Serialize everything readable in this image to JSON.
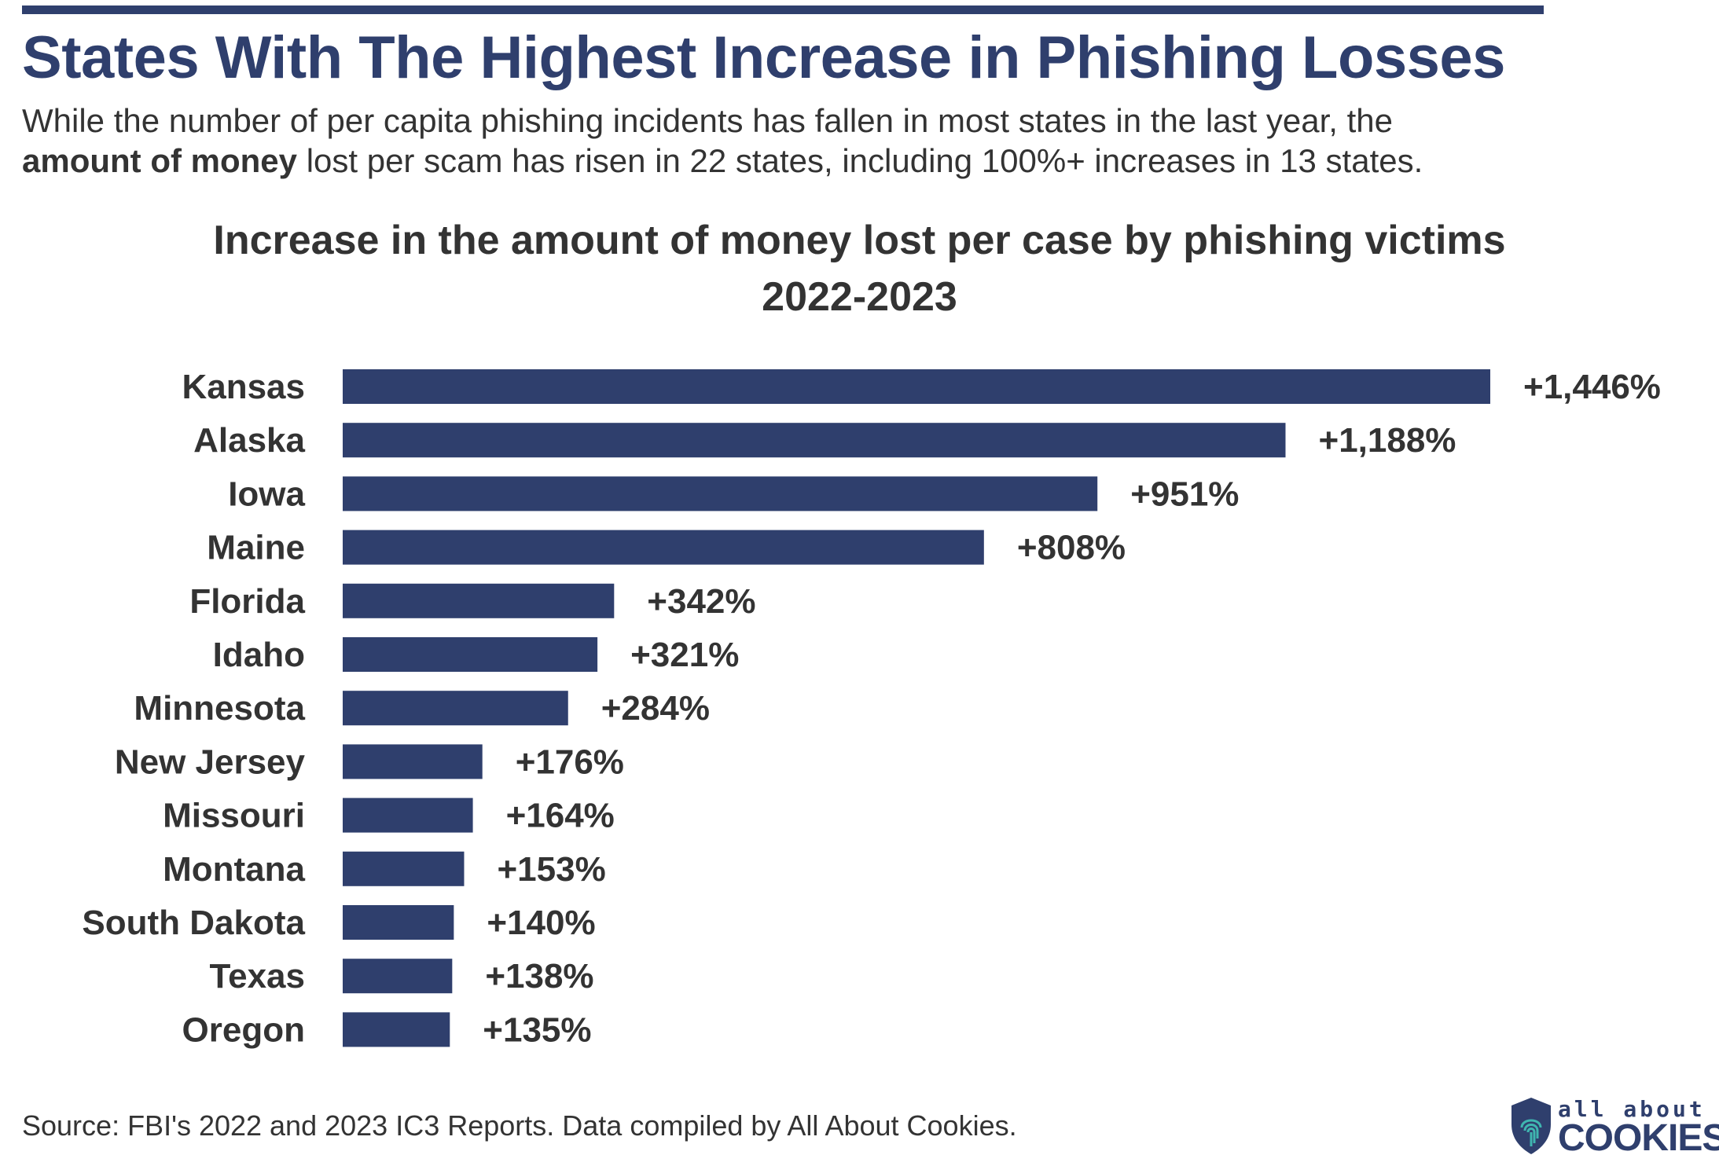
{
  "header": {
    "title": "States With The Highest Increase in Phishing Losses",
    "intro_part1": "While the number of per capita phishing incidents has fallen in most states in the last year, the",
    "intro_bold": "amount of money",
    "intro_part2": "lost per scam has risen in 22 states, including 100%+ increases in 13 states."
  },
  "chart_data": {
    "type": "bar",
    "orientation": "horizontal",
    "title": "Increase in the amount of money lost per case by phishing victims",
    "subtitle": "2022-2023",
    "categories": [
      "Kansas",
      "Alaska",
      "Iowa",
      "Maine",
      "Florida",
      "Idaho",
      "Minnesota",
      "New Jersey",
      "Missouri",
      "Montana",
      "South Dakota",
      "Texas",
      "Oregon"
    ],
    "values": [
      1446,
      1188,
      951,
      808,
      342,
      321,
      284,
      176,
      164,
      153,
      140,
      138,
      135
    ],
    "labels": [
      "+1,446%",
      "+1,188%",
      "+951%",
      "+808%",
      "+342%",
      "+321%",
      "+284%",
      "+176%",
      "+164%",
      "+153%",
      "+140%",
      "+138%",
      "+135%"
    ],
    "unit": "%",
    "xlim": [
      0,
      1446
    ],
    "grid": false,
    "legend": "none",
    "bar_color": "#2f3f6d"
  },
  "footer": {
    "source": "Source: FBI's 2022 and 2023 IC3 Reports. Data compiled by All About Cookies.",
    "logo_top": "all about",
    "logo_bottom": "COOKIES"
  },
  "colors": {
    "brand": "#2f3f6d",
    "text": "#333333",
    "logo_accent": "#3fb6b0"
  }
}
